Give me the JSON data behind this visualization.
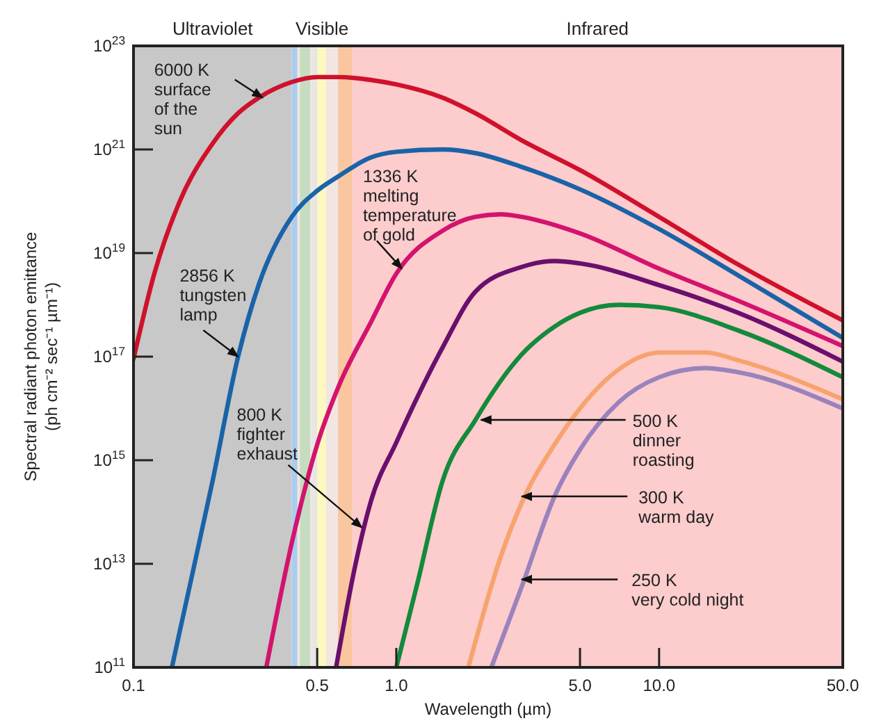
{
  "chart_data": {
    "type": "line",
    "log": "xy",
    "xlabel": "Wavelength (µm)",
    "ylabel": "Spectral radiant photon emittance\n(ph cm⁻² sec⁻¹ µm⁻¹)",
    "xlim": [
      0.1,
      50
    ],
    "ylim": [
      100000000000.0,
      1e+23
    ],
    "xticks": [
      0.1,
      0.5,
      {
        "value": 1,
        "label": "1.0"
      },
      {
        "value": 5,
        "label": "5.0"
      },
      {
        "value": 10,
        "label": "10.0"
      },
      {
        "value": 50,
        "label": "50.0"
      }
    ],
    "yticks": [
      {
        "value": 100000000000.0,
        "label": "10$^{11}$"
      },
      {
        "value": 10000000000000.0,
        "label": "10$^{13}$"
      },
      {
        "value": 1000000000000000.0,
        "label": "10$^{15}$"
      },
      {
        "value": 1e+17,
        "label": "10$^{17}$"
      },
      {
        "value": 1e+19,
        "label": "10$^{19}$"
      },
      {
        "value": 1e+21,
        "label": "10$^{21}$"
      },
      {
        "value": 1e+23,
        "label": "10$^{23}$"
      }
    ],
    "bands": [
      {
        "axis": "x",
        "from": 0.1,
        "to": 0.4,
        "label": "Ultraviolet",
        "color": "#c8c8c8"
      },
      {
        "axis": "x",
        "from": 0.4,
        "to": 0.68,
        "label": "Visible",
        "color": "#f1e6e2"
      },
      {
        "axis": "x",
        "from": 0.4,
        "to": 0.42,
        "color": "#a9cdef"
      },
      {
        "axis": "x",
        "from": 0.43,
        "to": 0.47,
        "color": "#c6dcc0"
      },
      {
        "axis": "x",
        "from": 0.48,
        "to": 0.5,
        "color": "#e6e6e6"
      },
      {
        "axis": "x",
        "from": 0.5,
        "to": 0.54,
        "color": "#fdf8c0"
      },
      {
        "axis": "x",
        "from": 0.6,
        "to": 0.68,
        "color": "#f9c6a0"
      },
      {
        "axis": "x",
        "from": 0.68,
        "to": 50,
        "label": "Infrared",
        "color": "#fdcccc"
      }
    ],
    "series": [
      {
        "color": "#d0112b",
        "x": [
          0.1,
          0.12,
          0.15,
          0.2,
          0.25,
          0.3,
          0.4,
          0.5,
          0.6,
          0.8,
          1,
          1.5,
          2,
          3,
          5,
          10,
          20,
          50
        ],
        "values": [
          9e+16,
          4e+18,
          1e+20,
          1.3e+21,
          5e+21,
          1e+22,
          2e+22,
          2.5e+22,
          2.5e+22,
          2.2e+22,
          1.8e+22,
          1e+22,
          5e+21,
          1.5e+21,
          4e+20,
          5e+19,
          6e+18,
          5e+17
        ]
      },
      {
        "color": "#1a63a8",
        "x": [
          0.14,
          0.15,
          0.2,
          0.25,
          0.3,
          0.4,
          0.5,
          0.6,
          0.8,
          1,
          1.5,
          2,
          3,
          5,
          10,
          20,
          50
        ],
        "values": [
          100000000000.0,
          500000000000.0,
          400000000000000.0,
          1e+17,
          2.5e+18,
          5e+19,
          1.6e+20,
          3e+20,
          7e+20,
          9e+20,
          1e+21,
          8.5e+20,
          4.6e+20,
          1.7e+20,
          2.9e+19,
          3.7e+18,
          2.3e+17
        ]
      },
      {
        "color": "#d4136e",
        "x": [
          0.32,
          0.4,
          0.5,
          0.6,
          0.8,
          1,
          1.5,
          2,
          2.5,
          3,
          5,
          10,
          20,
          50
        ],
        "values": [
          100000000000.0,
          25000000000000.0,
          2000000000000000.0,
          2.5e+16,
          4.6e+17,
          4e+18,
          2.7e+19,
          5e+19,
          5.6e+19,
          5e+19,
          2.4e+19,
          5e+18,
          1.2e+18,
          1.6e+17
        ]
      },
      {
        "color": "#6a0f6e",
        "x": [
          0.59,
          0.7,
          0.8,
          1,
          1.5,
          2,
          3,
          4,
          5,
          10,
          20,
          50
        ],
        "values": [
          100000000000.0,
          10000000000000.0,
          160000000000000.0,
          2200000000000000.0,
          1.5e+17,
          1.8e+18,
          5.4e+18,
          7e+18,
          6.3e+18,
          2.4e+18,
          7e+17,
          8e+16
        ]
      },
      {
        "color": "#138a3c",
        "x": [
          1,
          1.2,
          1.5,
          2,
          3,
          4,
          5,
          7,
          10,
          20,
          50
        ],
        "values": [
          100000000000.0,
          4000000000000.0,
          400000000000000.0,
          6000000000000000.0,
          1.1e+17,
          3.8e+17,
          7e+17,
          1e+18,
          9e+17,
          3.2e+17,
          4e+16
        ]
      },
      {
        "color": "#f7a36e",
        "x": [
          1.88,
          2.5,
          3,
          4,
          5,
          7,
          10,
          15,
          20,
          50
        ],
        "values": [
          100000000000.0,
          14000000000000.0,
          150000000000000.0,
          2000000000000000.0,
          1e+16,
          5.6e+16,
          1.2e+17,
          1.2e+17,
          8.5e+16,
          1.5e+16
        ]
      },
      {
        "color": "#9a83bd",
        "x": [
          2.3,
          3,
          4,
          5,
          7,
          10,
          15,
          20,
          50
        ],
        "values": [
          100000000000.0,
          3600000000000.0,
          200000000000000.0,
          1600000000000000.0,
          1.3e+16,
          4e+16,
          6e+16,
          5e+16,
          1e+16
        ]
      }
    ],
    "annotations": [
      {
        "text": "6000 K\nsurface\nof the\nsun",
        "x": 0.31,
        "y": 1e+22
      },
      {
        "text": "1336 K\nmelting\ntemperature\nof gold",
        "x": 1.05,
        "y": 5e+18
      },
      {
        "text": "2856 K\ntungsten\nlamp",
        "x": 0.25,
        "y": 1e+17
      },
      {
        "text": "800 K\nfighter\nexhaust",
        "x": 0.74,
        "y": 50000000000000.0
      },
      {
        "text": "500 K\ndinner\nroasting",
        "x": 2.1,
        "y": 6000000000000000.0
      },
      {
        "text": "300 K\nwarm day",
        "x": 3,
        "y": 200000000000000.0
      },
      {
        "text": "250 K\nvery cold night",
        "x": 3,
        "y": 5000000000000.0
      }
    ]
  }
}
